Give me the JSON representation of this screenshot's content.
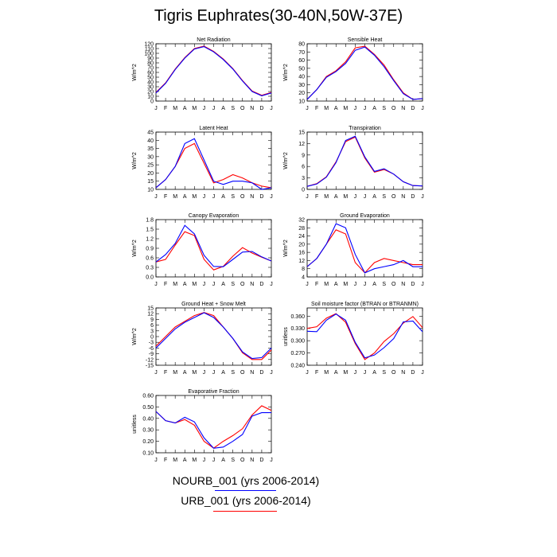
{
  "title": "Tigris Euphrates(30-40N,50W-37E)",
  "months": [
    "J",
    "F",
    "M",
    "A",
    "M",
    "J",
    "J",
    "A",
    "S",
    "O",
    "N",
    "D",
    "J"
  ],
  "legend": [
    {
      "label": "NOURB_001 (yrs 2006-2014)",
      "color": "#0000ff"
    },
    {
      "label": "URB_001 (yrs 2006-2014)",
      "color": "#ff0000"
    }
  ],
  "chart_data": [
    {
      "type": "line",
      "title": "Net Radiation",
      "ylabel": "W/m^2",
      "ylim": [
        0,
        120
      ],
      "yticks": [
        0,
        10,
        20,
        30,
        40,
        50,
        60,
        70,
        80,
        90,
        100,
        110,
        120
      ],
      "yticklabels": [
        "0",
        "10",
        "20",
        "30",
        "40",
        "50",
        "60",
        "70",
        "80",
        "90",
        "100",
        "110",
        "120"
      ],
      "series": [
        {
          "name": "NOURB_001 (yrs 2006-2014)",
          "color": "#0000ff",
          "values": [
            17,
            37,
            66,
            90,
            109,
            114,
            103,
            87,
            67,
            42,
            20,
            11,
            17
          ]
        },
        {
          "name": "URB_001 (yrs 2006-2014)",
          "color": "#ff0000",
          "values": [
            18,
            38,
            67,
            91,
            110,
            115,
            104,
            88,
            68,
            43,
            21,
            12,
            18
          ]
        }
      ]
    },
    {
      "type": "line",
      "title": "Sensible Heat",
      "ylabel": "W/m^2",
      "ylim": [
        10,
        80
      ],
      "yticks": [
        10,
        20,
        30,
        40,
        50,
        60,
        70,
        80
      ],
      "yticklabels": [
        "10",
        "20",
        "30",
        "40",
        "50",
        "60",
        "70",
        "80"
      ],
      "series": [
        {
          "name": "NOURB_001 (yrs 2006-2014)",
          "color": "#0000ff",
          "values": [
            12,
            24,
            39,
            46,
            56,
            72,
            76,
            66,
            52,
            35,
            19,
            12,
            13
          ]
        },
        {
          "name": "URB_001 (yrs 2006-2014)",
          "color": "#ff0000",
          "values": [
            12,
            24,
            40,
            47,
            58,
            75,
            77,
            67,
            54,
            36,
            20,
            12,
            13
          ]
        }
      ]
    },
    {
      "type": "line",
      "title": "Latent Heat",
      "ylabel": "W/m^2",
      "ylim": [
        10,
        45
      ],
      "yticks": [
        10,
        15,
        20,
        25,
        30,
        35,
        40,
        45
      ],
      "yticklabels": [
        "10",
        "15",
        "20",
        "25",
        "30",
        "35",
        "40",
        "45"
      ],
      "series": [
        {
          "name": "NOURB_001 (yrs 2006-2014)",
          "color": "#0000ff",
          "values": [
            11,
            16,
            24,
            38,
            41,
            28,
            15,
            13,
            15,
            15,
            14,
            10,
            11
          ]
        },
        {
          "name": "URB_001 (yrs 2006-2014)",
          "color": "#ff0000",
          "values": [
            11,
            16,
            24,
            35,
            38,
            26,
            14,
            16,
            19,
            17,
            14,
            12,
            11
          ]
        }
      ]
    },
    {
      "type": "line",
      "title": "Transpiration",
      "ylabel": "W/m^2",
      "ylim": [
        0,
        15
      ],
      "yticks": [
        0,
        3,
        6,
        9,
        12,
        15
      ],
      "yticklabels": [
        "0",
        "3",
        "6",
        "9",
        "12",
        "15"
      ],
      "series": [
        {
          "name": "NOURB_001 (yrs 2006-2014)",
          "color": "#0000ff",
          "values": [
            0.8,
            1.4,
            3.2,
            7.0,
            12.8,
            13.9,
            8.5,
            4.7,
            5.4,
            4.0,
            2.0,
            1.0,
            0.9
          ]
        },
        {
          "name": "URB_001 (yrs 2006-2014)",
          "color": "#ff0000",
          "values": [
            0.8,
            1.5,
            3.3,
            7.2,
            12.5,
            13.7,
            8.2,
            4.5,
            5.2,
            4.0,
            2.0,
            1.0,
            0.9
          ]
        }
      ]
    },
    {
      "type": "line",
      "title": "Canopy Evaporation",
      "ylabel": "W/m^2",
      "ylim": [
        0,
        1.8
      ],
      "yticks": [
        0,
        0.3,
        0.6,
        0.9,
        1.2,
        1.5,
        1.8
      ],
      "yticklabels": [
        "0.0",
        "0.3",
        "0.6",
        "0.9",
        "1.2",
        "1.5",
        "1.8"
      ],
      "series": [
        {
          "name": "NOURB_001 (yrs 2006-2014)",
          "color": "#0000ff",
          "values": [
            0.47,
            0.7,
            1.05,
            1.62,
            1.35,
            0.68,
            0.33,
            0.32,
            0.55,
            0.78,
            0.8,
            0.63,
            0.5
          ]
        },
        {
          "name": "URB_001 (yrs 2006-2014)",
          "color": "#ff0000",
          "values": [
            0.47,
            0.55,
            1.0,
            1.42,
            1.3,
            0.55,
            0.22,
            0.33,
            0.65,
            0.92,
            0.75,
            0.62,
            0.5
          ]
        }
      ]
    },
    {
      "type": "line",
      "title": "Ground Evaporation",
      "ylabel": "W/m^2",
      "ylim": [
        4,
        32
      ],
      "yticks": [
        4,
        8,
        12,
        16,
        20,
        24,
        28,
        32
      ],
      "yticklabels": [
        "4",
        "8",
        "12",
        "16",
        "20",
        "24",
        "28",
        "32"
      ],
      "series": [
        {
          "name": "NOURB_001 (yrs 2006-2014)",
          "color": "#0000ff",
          "values": [
            9,
            13,
            20,
            30,
            28,
            15,
            6,
            8,
            9,
            10,
            12,
            9,
            9
          ]
        },
        {
          "name": "URB_001 (yrs 2006-2014)",
          "color": "#ff0000",
          "values": [
            9,
            13,
            20,
            27,
            25,
            11,
            6,
            11,
            13,
            12,
            11,
            10,
            10
          ]
        }
      ]
    },
    {
      "type": "line",
      "title": "Ground Heat + Snow Melt",
      "ylabel": "W/m^2",
      "ylim": [
        -15,
        15
      ],
      "yticks": [
        -15,
        -12,
        -9,
        -6,
        -3,
        0,
        3,
        6,
        9,
        12,
        15
      ],
      "yticklabels": [
        "-15",
        "-12",
        "-9",
        "-6",
        "-3",
        "0",
        "3",
        "6",
        "9",
        "12",
        "15"
      ],
      "series": [
        {
          "name": "NOURB_001 (yrs 2006-2014)",
          "color": "#0000ff",
          "values": [
            -6,
            -1,
            4,
            7.5,
            10,
            12.5,
            10,
            5,
            -1,
            -8,
            -11.5,
            -11,
            -6
          ]
        },
        {
          "name": "URB_001 (yrs 2006-2014)",
          "color": "#ff0000",
          "values": [
            -5,
            0,
            5,
            8,
            11,
            12.6,
            11,
            5,
            -1,
            -8.5,
            -12,
            -12,
            -7
          ]
        }
      ]
    },
    {
      "type": "line",
      "title": "Soil moisture factor (BTRAN or BTRANMN)",
      "ylabel": "unitless",
      "ylim": [
        0.24,
        0.38
      ],
      "yticks": [
        0.24,
        0.27,
        0.3,
        0.33,
        0.36
      ],
      "yticklabels": [
        "0.240",
        "0.270",
        "0.300",
        "0.330",
        "0.360"
      ],
      "series": [
        {
          "name": "NOURB_001 (yrs 2006-2014)",
          "color": "#0000ff",
          "values": [
            0.323,
            0.322,
            0.35,
            0.365,
            0.35,
            0.296,
            0.258,
            0.265,
            0.283,
            0.305,
            0.346,
            0.348,
            0.322
          ]
        },
        {
          "name": "URB_001 (yrs 2006-2014)",
          "color": "#ff0000",
          "values": [
            0.33,
            0.334,
            0.355,
            0.366,
            0.345,
            0.293,
            0.254,
            0.27,
            0.298,
            0.317,
            0.343,
            0.359,
            0.332
          ]
        }
      ]
    },
    {
      "type": "line",
      "title": "Evaporative Fraction",
      "ylabel": "unitless",
      "ylim": [
        0.1,
        0.6
      ],
      "yticks": [
        0.1,
        0.2,
        0.3,
        0.4,
        0.5,
        0.6
      ],
      "yticklabels": [
        "0.10",
        "0.20",
        "0.30",
        "0.40",
        "0.50",
        "0.60"
      ],
      "series": [
        {
          "name": "NOURB_001 (yrs 2006-2014)",
          "color": "#0000ff",
          "values": [
            0.46,
            0.38,
            0.36,
            0.41,
            0.37,
            0.23,
            0.14,
            0.15,
            0.2,
            0.26,
            0.42,
            0.45,
            0.45
          ]
        },
        {
          "name": "URB_001 (yrs 2006-2014)",
          "color": "#ff0000",
          "values": [
            0.46,
            0.38,
            0.36,
            0.39,
            0.34,
            0.2,
            0.14,
            0.2,
            0.25,
            0.31,
            0.43,
            0.51,
            0.47
          ]
        }
      ]
    }
  ]
}
